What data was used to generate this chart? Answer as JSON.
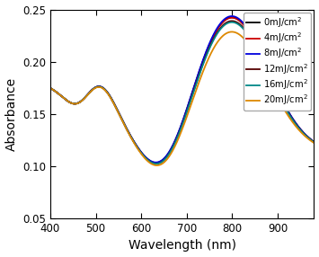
{
  "title": "",
  "xlabel": "Wavelength (nm)",
  "ylabel": "Absorbance",
  "xlim": [
    400,
    980
  ],
  "ylim": [
    0.05,
    0.25
  ],
  "xticks": [
    400,
    500,
    600,
    700,
    800,
    900
  ],
  "yticks": [
    0.05,
    0.1,
    0.15,
    0.2,
    0.25
  ],
  "series": [
    {
      "label": "0mJ/cm$^2$",
      "color": "#000000",
      "lp_scale": 1.0,
      "tp_scale": 1.0,
      "min_scale": 1.0,
      "lw": 1.3
    },
    {
      "label": "4mJ/cm$^2$",
      "color": "#cc0000",
      "lp_scale": 0.997,
      "tp_scale": 0.997,
      "min_scale": 1.004,
      "lw": 1.3
    },
    {
      "label": "8mJ/cm$^2$",
      "color": "#0000dd",
      "lp_scale": 1.01,
      "tp_scale": 1.005,
      "min_scale": 0.995,
      "lw": 1.3
    },
    {
      "label": "12mJ/cm$^2$",
      "color": "#550000",
      "lp_scale": 0.97,
      "tp_scale": 0.995,
      "min_scale": 1.01,
      "lw": 1.3
    },
    {
      "label": "16mJ/cm$^2$",
      "color": "#008888",
      "lp_scale": 0.96,
      "tp_scale": 0.993,
      "min_scale": 1.008,
      "lw": 1.3
    },
    {
      "label": "20mJ/cm$^2$",
      "color": "#dd8800",
      "lp_scale": 0.88,
      "tp_scale": 0.98,
      "min_scale": 1.02,
      "lw": 1.3
    }
  ],
  "background_color": "#ffffff",
  "legend_fontsize": 7.2,
  "axis_fontsize": 10,
  "tick_labelsize": 8.5
}
